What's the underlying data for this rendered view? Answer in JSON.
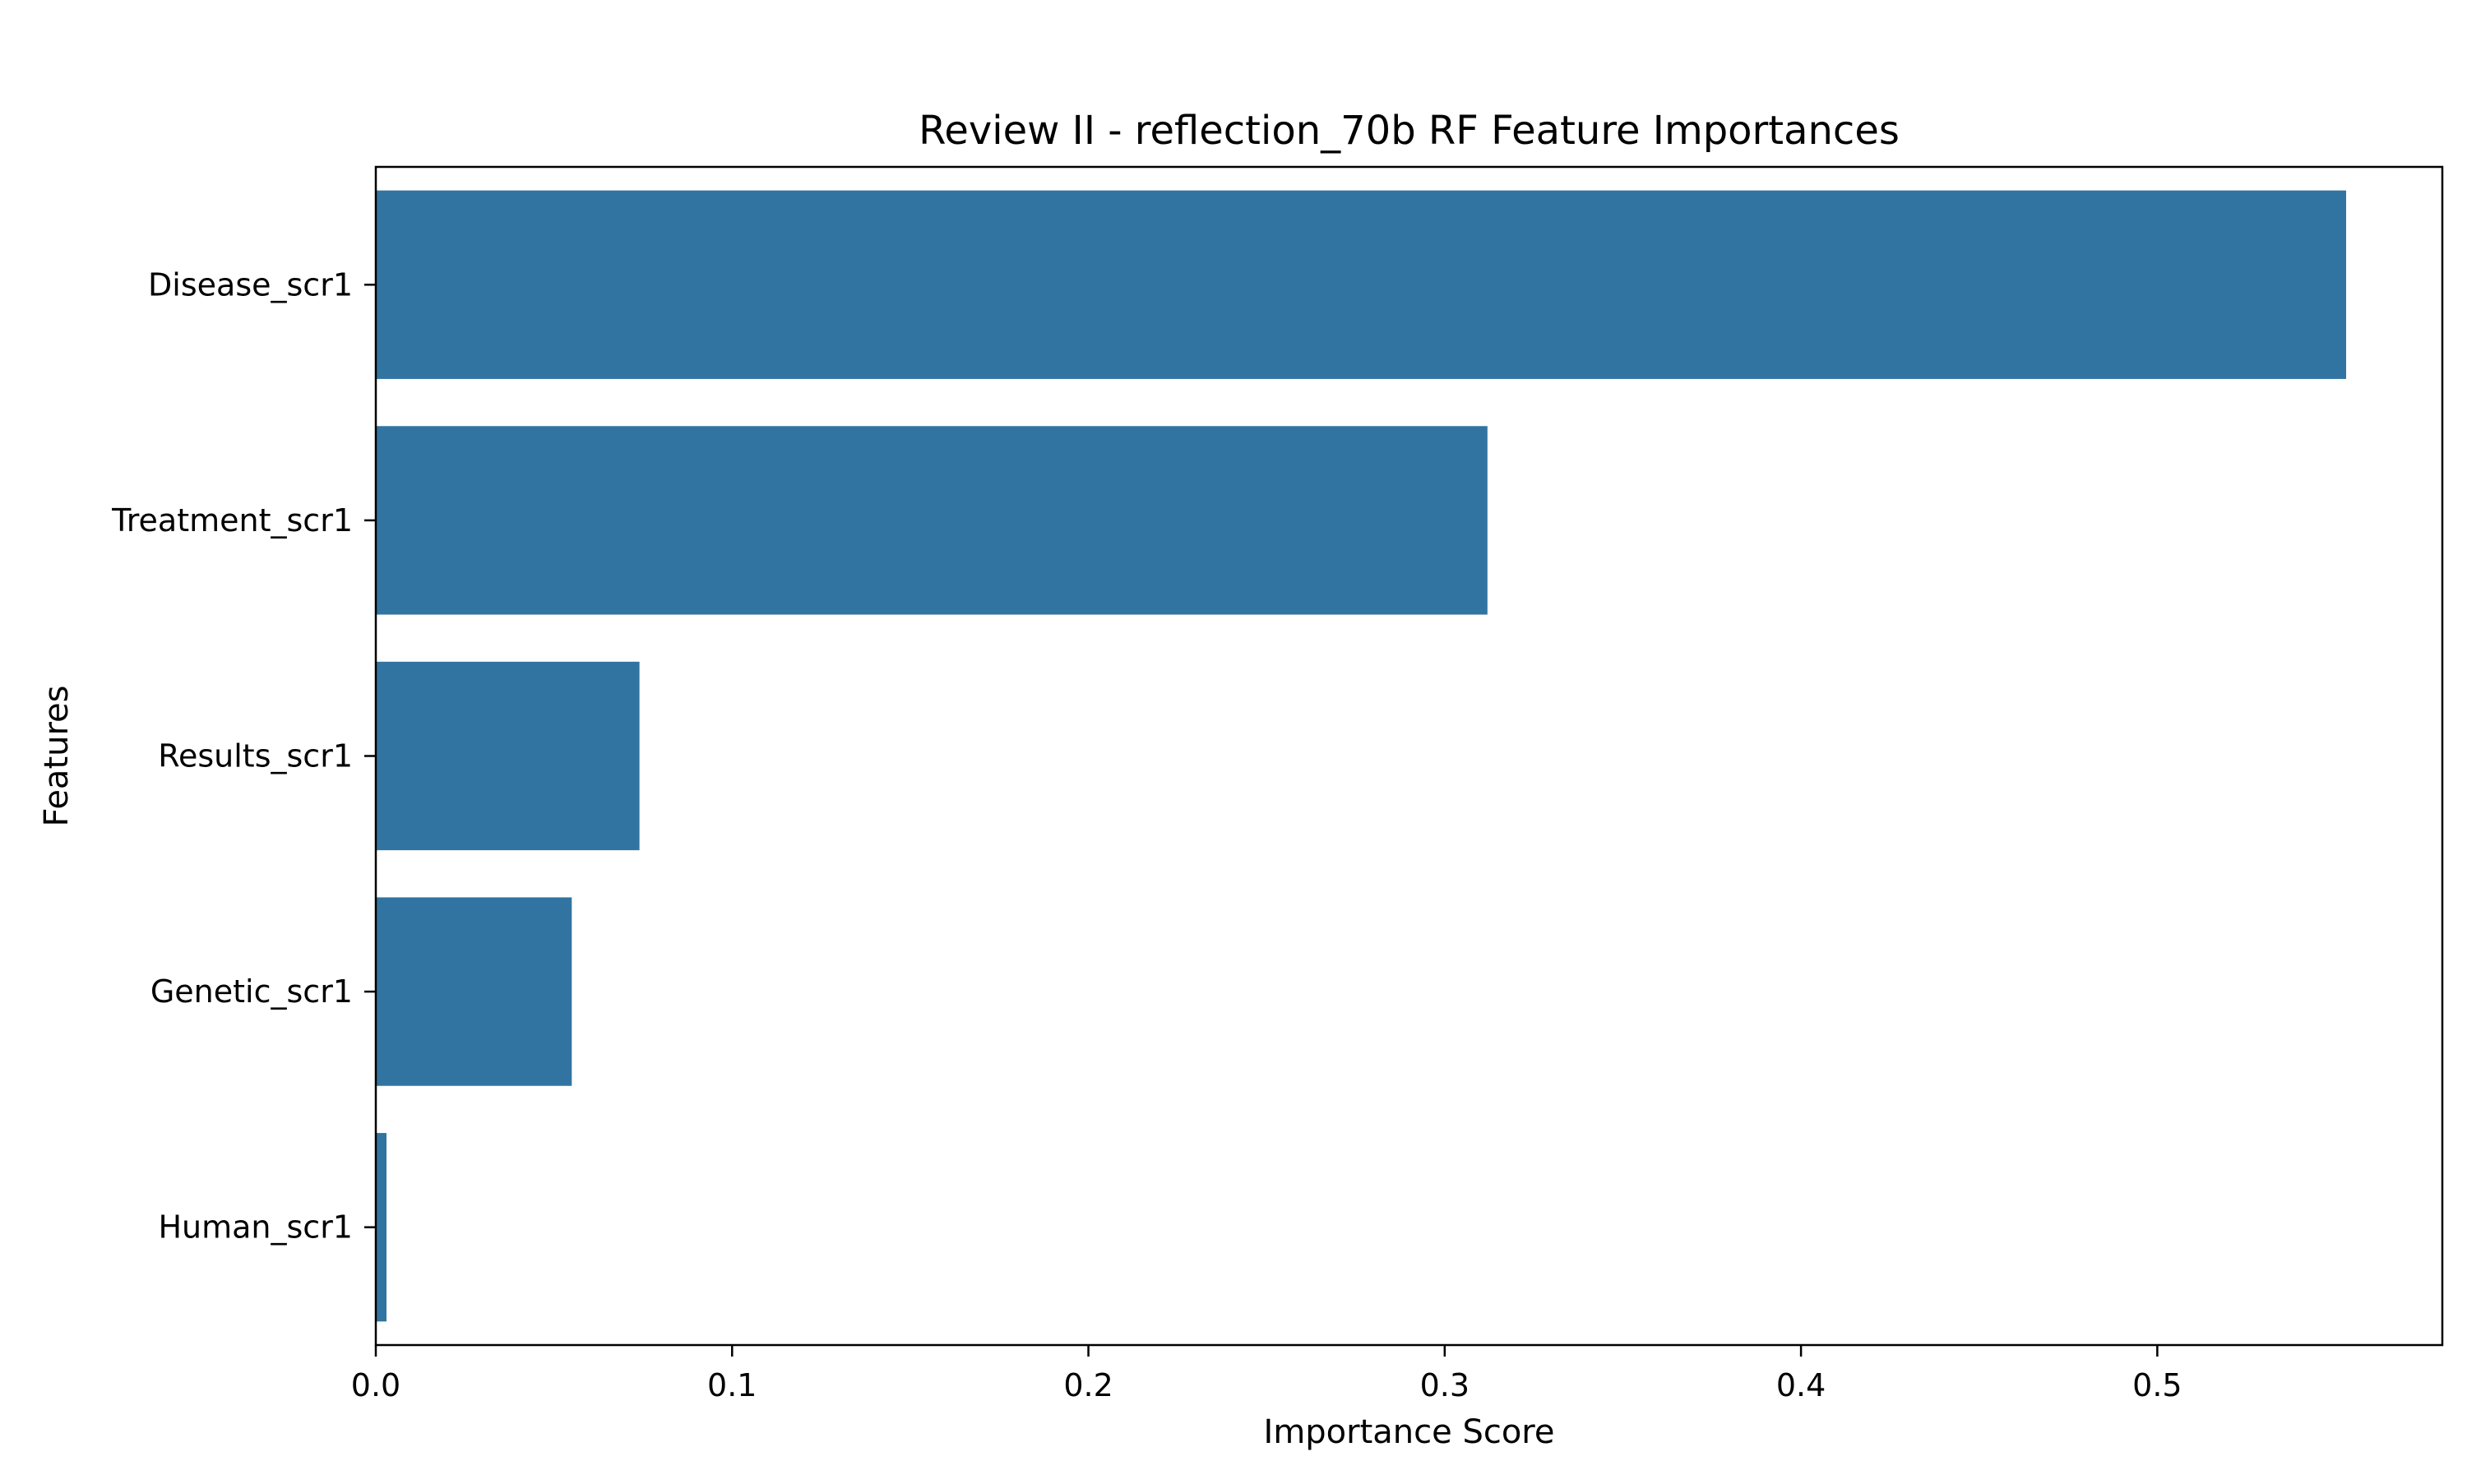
{
  "chart_data": {
    "type": "bar",
    "orientation": "horizontal",
    "title": "Review II - reflection_70b RF Feature Importances",
    "xlabel": "Importance Score",
    "ylabel": "Features",
    "categories": [
      "Disease_scr1",
      "Treatment_scr1",
      "Results_scr1",
      "Genetic_scr1",
      "Human_scr1"
    ],
    "values": [
      0.553,
      0.312,
      0.074,
      0.055,
      0.003
    ],
    "xlim": [
      0.0,
      0.58
    ],
    "xticks": [
      0.0,
      0.1,
      0.2,
      0.3,
      0.4,
      0.5
    ],
    "xtick_labels": [
      "0.0",
      "0.1",
      "0.2",
      "0.3",
      "0.4",
      "0.5"
    ],
    "bar_color": "#3274a1",
    "grid": false,
    "legend": "none"
  }
}
